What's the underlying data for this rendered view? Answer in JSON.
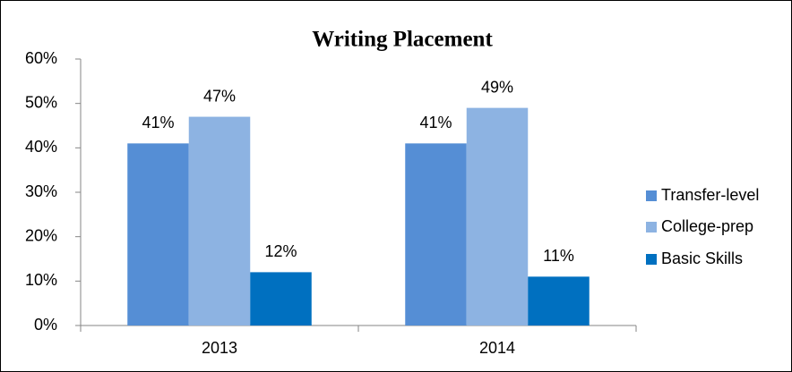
{
  "chart_data": {
    "type": "bar",
    "title": "Writing Placement",
    "categories": [
      "2013",
      "2014"
    ],
    "series": [
      {
        "name": "Transfer-level",
        "color": "#558ed5",
        "values": [
          41,
          41
        ],
        "value_labels": [
          "41%",
          "41%"
        ]
      },
      {
        "name": "College-prep",
        "color": "#8db3e2",
        "values": [
          47,
          49
        ],
        "value_labels": [
          "47%",
          "49%"
        ]
      },
      {
        "name": "Basic Skills",
        "color": "#0070c0",
        "values": [
          12,
          11
        ],
        "value_labels": [
          "12%",
          "11%"
        ]
      }
    ],
    "ylim": [
      0,
      60
    ],
    "yticks": [
      {
        "value": 0,
        "label": "0%"
      },
      {
        "value": 10,
        "label": "10%"
      },
      {
        "value": 20,
        "label": "20%"
      },
      {
        "value": 30,
        "label": "30%"
      },
      {
        "value": 40,
        "label": "40%"
      },
      {
        "value": 50,
        "label": "50%"
      },
      {
        "value": 60,
        "label": "60%"
      }
    ],
    "grid": false,
    "legend": "right"
  }
}
